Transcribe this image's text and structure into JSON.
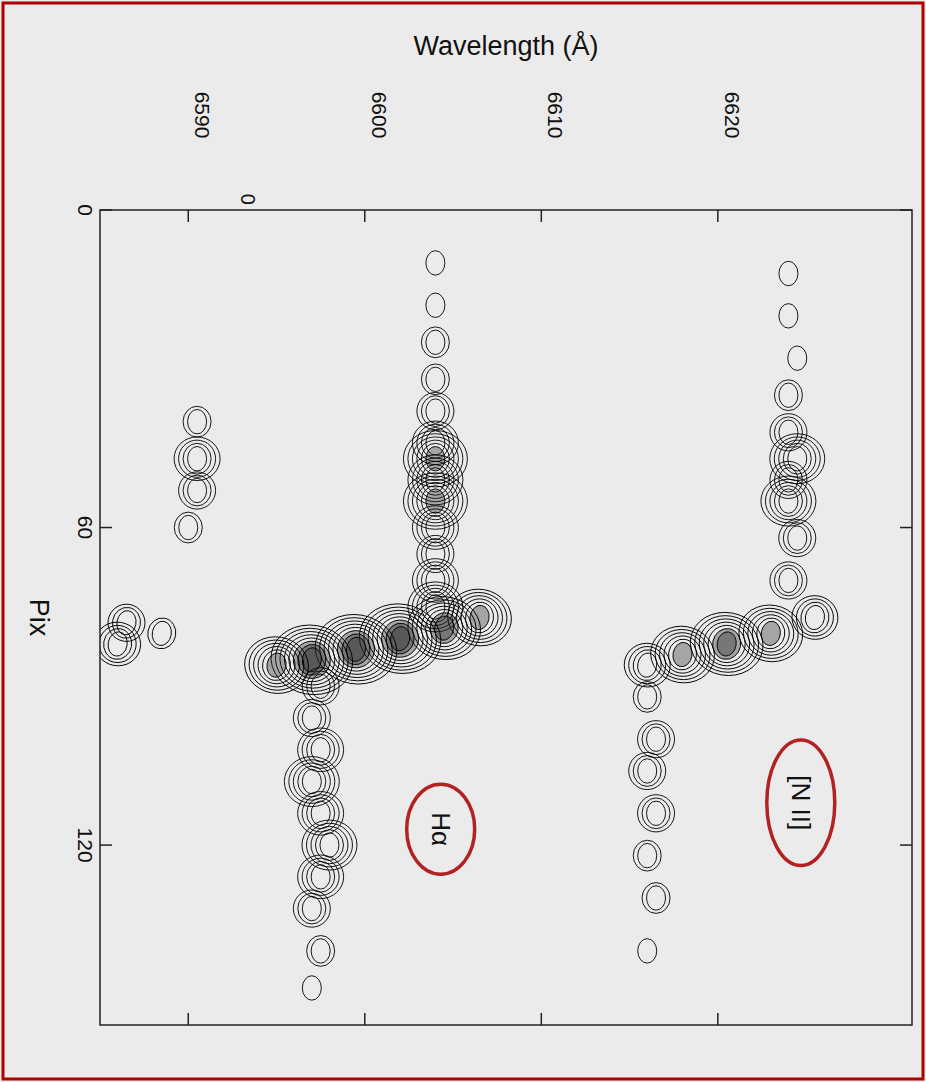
{
  "chart_data": {
    "type": "contour",
    "x_label": "Wavelength (Å)",
    "y_label": "Pix",
    "xlim": [
      6585,
      6631
    ],
    "xticks": [
      6590,
      6600,
      6610,
      6620
    ],
    "ylim": [
      0,
      154
    ],
    "yticks": [
      0,
      60,
      120
    ],
    "color": "#000000",
    "annotations": [
      {
        "text": "Hα",
        "x": 6604.3,
        "y": 117
      },
      {
        "text": "[N II]",
        "x": 6624.7,
        "y": 112
      },
      {
        "text": "0",
        "x": 6592.6,
        "y": -2
      }
    ],
    "knots": {
      "x": [
        6604,
        6604,
        6604,
        6604,
        6604,
        6604,
        6604,
        6604,
        6604,
        6604,
        6604,
        6604,
        6604,
        6606.5,
        6604.5,
        6602,
        6599.5,
        6597,
        6595,
        6597.5,
        6597,
        6597.5,
        6597,
        6597.5,
        6598,
        6597.5,
        6597,
        6597.5,
        6597,
        6624,
        6624,
        6624.5,
        6624,
        6624,
        6624.5,
        6624,
        6624,
        6624.5,
        6624,
        6625.5,
        6623,
        6620.5,
        6618,
        6616,
        6616,
        6616.5,
        6616,
        6616.5,
        6616,
        6616.5,
        6616,
        6590.5,
        6590.5,
        6590.5,
        6590,
        6586.5,
        6586,
        6588.5
      ],
      "y": [
        10,
        18,
        25,
        32,
        38,
        44,
        47,
        51,
        55,
        60,
        65,
        70,
        75,
        77,
        79,
        81,
        83,
        85,
        86,
        90,
        96,
        102,
        108,
        114,
        120,
        126,
        132,
        140,
        147,
        12,
        20,
        28,
        35,
        42,
        47,
        51,
        55,
        62,
        70,
        77,
        80,
        82,
        84,
        86,
        92,
        100,
        106,
        114,
        122,
        130,
        140,
        40,
        47,
        53,
        60,
        78,
        82,
        80
      ],
      "level": [
        1,
        1,
        2,
        2,
        3,
        4,
        6,
        5,
        6,
        4,
        3,
        4,
        5,
        6,
        7,
        8,
        8,
        8,
        6,
        3,
        3,
        4,
        5,
        4,
        5,
        4,
        3,
        2,
        1,
        1,
        1,
        1,
        2,
        3,
        5,
        3,
        5,
        3,
        3,
        4,
        6,
        7,
        6,
        4,
        2,
        3,
        3,
        3,
        2,
        2,
        1,
        2,
        4,
        3,
        2,
        3,
        4,
        2
      ]
    }
  }
}
